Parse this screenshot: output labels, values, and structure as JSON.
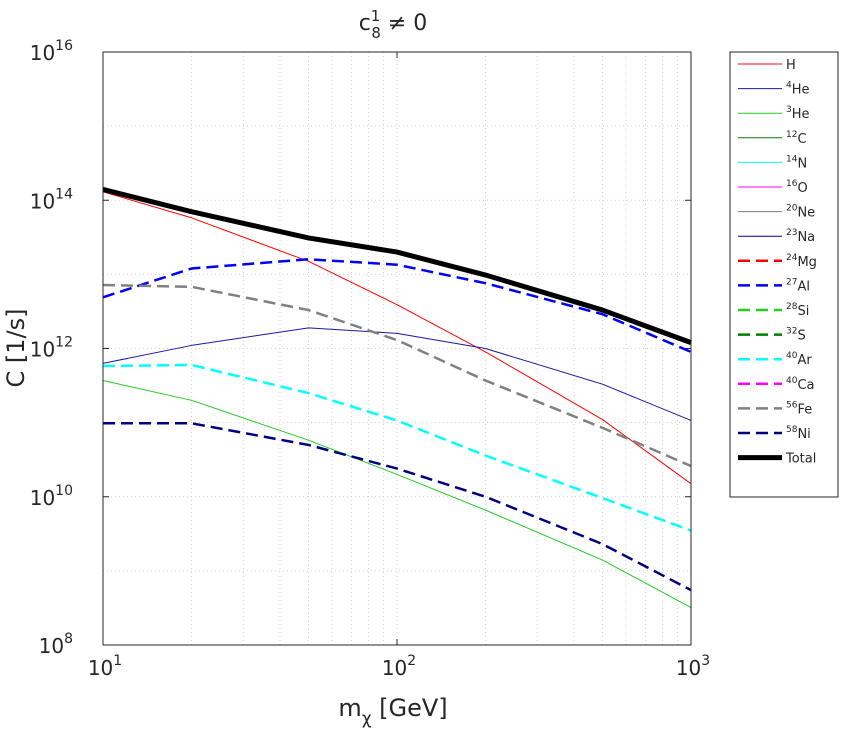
{
  "chart_data": {
    "type": "line",
    "title": {
      "symbol": "c",
      "subscript": "8",
      "superscript": "1",
      "text": " ≠ 0"
    },
    "xlabel": {
      "symbol": "m",
      "subscript": "χ",
      "text": " [GeV]"
    },
    "ylabel": "C [1/s]",
    "xscale": "log",
    "yscale": "log",
    "grid": true,
    "legend": "outside-right",
    "xlim": [
      10,
      1000
    ],
    "ylim": [
      100000000.0,
      1e+16
    ],
    "xticks": [
      {
        "value": 10,
        "label": "10",
        "exponent": "1"
      },
      {
        "value": 100,
        "label": "10",
        "exponent": "2"
      },
      {
        "value": 1000,
        "label": "10",
        "exponent": "3"
      }
    ],
    "yticks": [
      {
        "value": 100000000.0,
        "label": "10",
        "exponent": "8"
      },
      {
        "value": 10000000000.0,
        "label": "10",
        "exponent": "10"
      },
      {
        "value": 1000000000000.0,
        "label": "10",
        "exponent": "12"
      },
      {
        "value": 100000000000000.0,
        "label": "10",
        "exponent": "14"
      },
      {
        "value": 1e+16,
        "label": "10",
        "exponent": "16"
      }
    ],
    "xminorticks": [
      20,
      30,
      40,
      50,
      60,
      70,
      80,
      90,
      200,
      300,
      400,
      500,
      600,
      700,
      800,
      900
    ],
    "yminorticks": [
      1000000000.0,
      100000000000.0,
      10000000000000.0,
      1000000000000000.0
    ],
    "x": [
      10,
      20,
      50,
      100,
      200,
      500,
      1000
    ],
    "series": [
      {
        "name": "H",
        "color": "#ff0000",
        "style": "solid",
        "values": [
          130000000000000.0,
          58000000000000.0,
          15000000000000.0,
          3900000000000.0,
          900000000000.0,
          110000000000.0,
          15000000000.0
        ]
      },
      {
        "mass": "4",
        "name": "He",
        "color": "#1a1aa0",
        "style": "solid",
        "values": [
          630000000000.0,
          1100000000000.0,
          1900000000000.0,
          1600000000000.0,
          1000000000000.0,
          330000000000.0,
          107000000000.0
        ]
      },
      {
        "mass": "3",
        "name": "He",
        "color": "#22cc22",
        "style": "solid",
        "values": [
          370000000000.0,
          200000000000.0,
          58000000000.0,
          20000000000.0,
          6600000000.0,
          1400000000.0,
          320000000.0
        ]
      },
      {
        "mass": "12",
        "name": "C",
        "color": "#008000",
        "style": "solid",
        "values": [
          null,
          null,
          null,
          null,
          null,
          null,
          null
        ]
      },
      {
        "mass": "14",
        "name": "N",
        "color": "#00ffff",
        "style": "solid",
        "values": [
          null,
          null,
          null,
          null,
          null,
          null,
          null
        ]
      },
      {
        "mass": "16",
        "name": "O",
        "color": "#ff00ff",
        "style": "solid",
        "values": [
          null,
          null,
          null,
          null,
          null,
          null,
          null
        ]
      },
      {
        "mass": "20",
        "name": "Ne",
        "color": "#808080",
        "style": "solid",
        "values": [
          null,
          null,
          null,
          null,
          null,
          null,
          null
        ]
      },
      {
        "mass": "23",
        "name": "Na",
        "color": "#000080",
        "style": "solid",
        "values": [
          null,
          null,
          null,
          null,
          null,
          null,
          null
        ]
      },
      {
        "mass": "24",
        "name": "Mg",
        "color": "#ff0000",
        "style": "dashed",
        "values": [
          null,
          null,
          null,
          null,
          null,
          null,
          null
        ]
      },
      {
        "mass": "27",
        "name": "Al",
        "color": "#0000ff",
        "style": "dashed",
        "values": [
          4900000000000.0,
          12000000000000.0,
          16000000000000.0,
          13500000000000.0,
          7600000000000.0,
          2900000000000.0,
          900000000000.0
        ]
      },
      {
        "mass": "28",
        "name": "Si",
        "color": "#22cc22",
        "style": "dashed",
        "values": [
          null,
          null,
          null,
          null,
          null,
          null,
          null
        ]
      },
      {
        "mass": "32",
        "name": "S",
        "color": "#008000",
        "style": "dashed",
        "values": [
          null,
          null,
          null,
          null,
          null,
          null,
          null
        ]
      },
      {
        "mass": "40",
        "name": "Ar",
        "color": "#00ffff",
        "style": "dashed",
        "values": [
          580000000000.0,
          600000000000.0,
          250000000000.0,
          107000000000.0,
          36000000000.0,
          9600000000.0,
          3500000000.0
        ]
      },
      {
        "mass": "40",
        "name": "Ca",
        "color": "#ff00ff",
        "style": "dashed",
        "values": [
          null,
          null,
          null,
          null,
          null,
          null,
          null
        ]
      },
      {
        "mass": "56",
        "name": "Fe",
        "color": "#808080",
        "style": "dashed",
        "values": [
          7200000000000.0,
          6800000000000.0,
          3300000000000.0,
          1300000000000.0,
          370000000000.0,
          85000000000.0,
          26000000000.0
        ]
      },
      {
        "mass": "58",
        "name": "Ni",
        "color": "#000080",
        "style": "dashed",
        "values": [
          98000000000.0,
          98000000000.0,
          50000000000.0,
          24000000000.0,
          10000000000.0,
          2300000000.0,
          550000000.0
        ]
      },
      {
        "name": "Total",
        "color": "#000000",
        "style": "bold",
        "values": [
          140000000000000.0,
          70000000000000.0,
          31000000000000.0,
          20000000000000.0,
          9800000000000.0,
          3300000000000.0,
          1200000000000.0
        ]
      }
    ]
  }
}
